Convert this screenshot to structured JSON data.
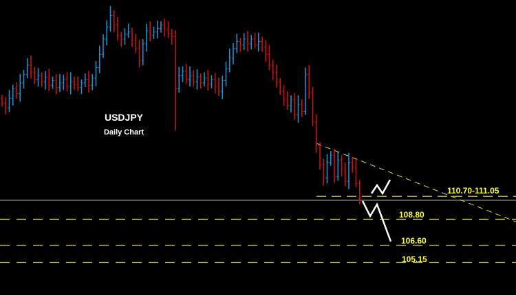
{
  "chart_data": {
    "type": "bar",
    "style": "ohlc",
    "title": "USDJPY",
    "subtitle": "Daily Chart",
    "ylim": [
      102.4,
      127.3
    ],
    "grid": false,
    "colors": {
      "background": "#000000",
      "up": "#1e90d0",
      "down": "#d01010",
      "level": "#ffff33",
      "price_line": "#9a9a9a",
      "forecast": "#ffffff"
    },
    "closes": [
      118.6,
      118.2,
      119.0,
      119.8,
      119.4,
      120.3,
      121.0,
      121.8,
      121.2,
      120.6,
      120.9,
      120.4,
      120.8,
      120.1,
      120.5,
      119.9,
      120.3,
      120.6,
      120.0,
      120.4,
      120.2,
      119.9,
      120.3,
      120.6,
      120.1,
      120.7,
      121.6,
      122.7,
      124.0,
      125.0,
      126.0,
      125.2,
      124.3,
      124.0,
      124.4,
      124.6,
      123.9,
      123.2,
      122.2,
      123.6,
      124.7,
      124.3,
      124.6,
      124.9,
      125.2,
      124.8,
      124.5,
      124.2,
      119.8,
      120.9,
      121.3,
      120.6,
      120.9,
      120.4,
      120.8,
      120.3,
      120.7,
      120.2,
      120.6,
      120.0,
      119.6,
      120.5,
      121.5,
      122.4,
      123.2,
      123.8,
      123.5,
      124.0,
      123.6,
      124.0,
      123.5,
      123.8,
      123.3,
      122.7,
      121.8,
      121.2,
      120.4,
      119.6,
      118.9,
      118.4,
      118.9,
      117.6,
      118.5,
      117.9,
      121.0,
      119.5,
      117.0,
      115.0,
      113.4,
      112.3,
      113.6,
      114.2,
      112.4,
      113.8,
      113.0,
      112.0,
      113.6,
      113.2,
      111.8,
      110.6
    ],
    "spike_low": {
      "index": 48,
      "low": 116.3
    },
    "current_price": 110.4,
    "levels": [
      {
        "label": "110.70-111.05",
        "price": 110.9
      },
      {
        "label": "108.80",
        "price": 108.8
      },
      {
        "label": "106.60",
        "price": 106.6
      },
      {
        "label": "105.15",
        "price": 105.15
      }
    ],
    "trendline": {
      "from": [
        87,
        115.2
      ],
      "to": [
        143,
        108.5
      ]
    }
  }
}
